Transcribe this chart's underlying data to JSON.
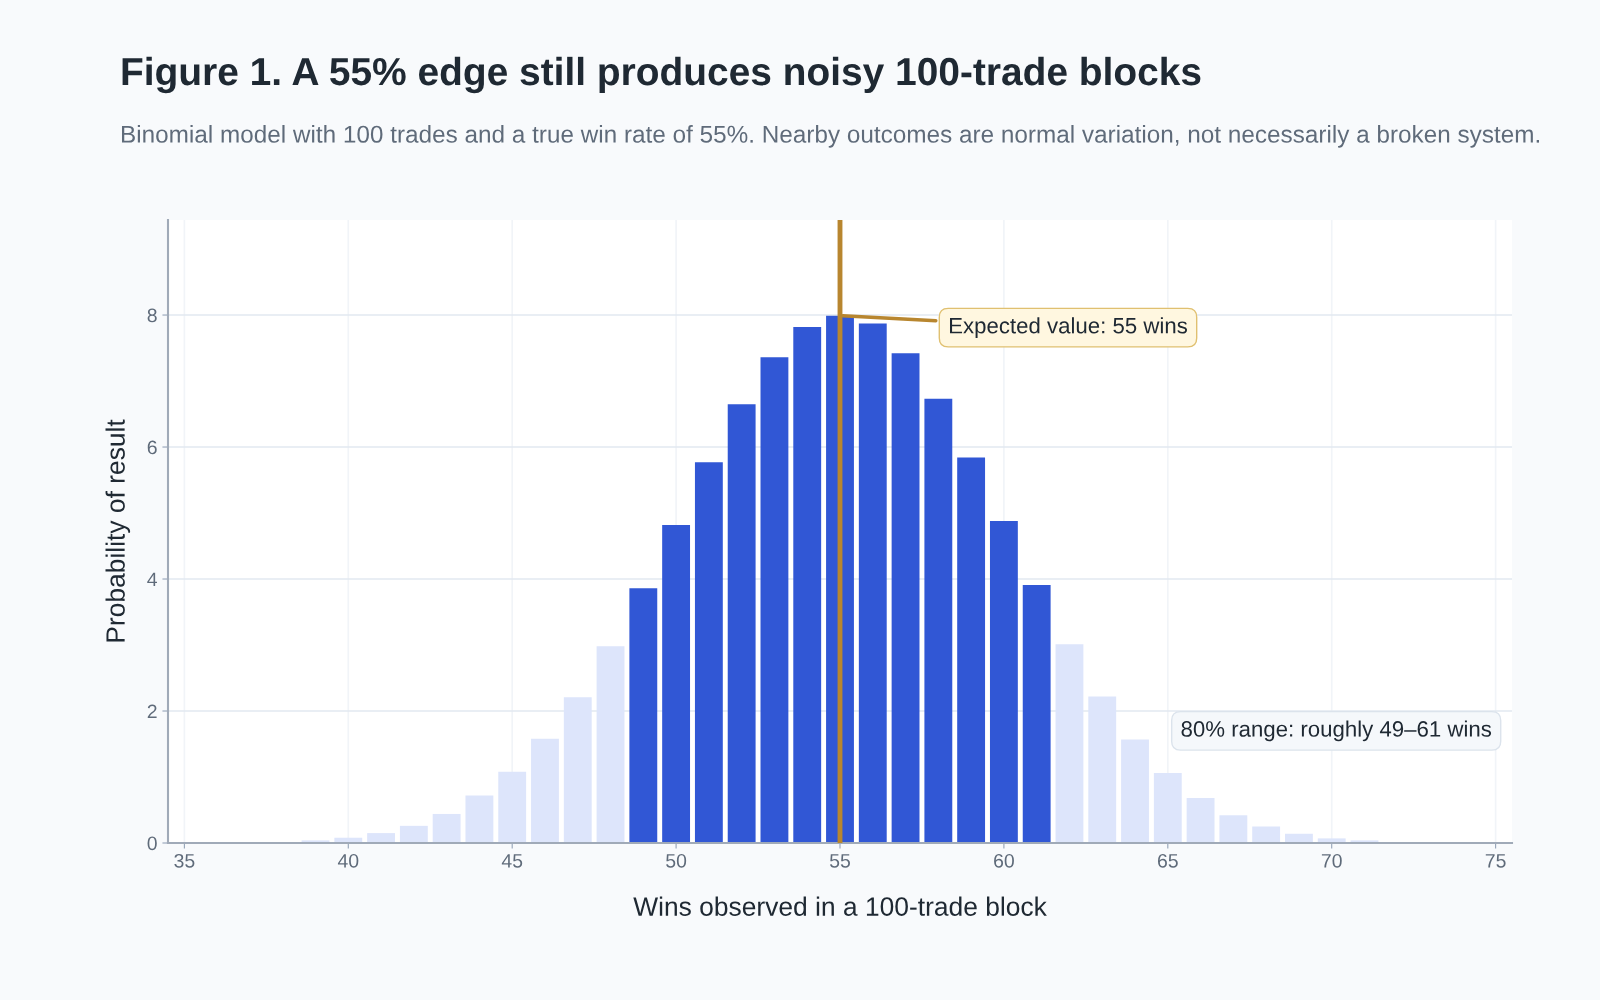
{
  "chart_data": {
    "type": "bar",
    "title": "Figure 1. A 55% edge still produces noisy 100-trade blocks",
    "subtitle": "Binomial model with 100 trades and a true win rate of 55%. Nearby outcomes are normal variation, not necessarily a broken system.",
    "xlabel": "Wins observed in a 100-trade block",
    "ylabel": "Probability of result",
    "x": [
      37,
      38,
      39,
      40,
      41,
      42,
      43,
      44,
      45,
      46,
      47,
      48,
      49,
      50,
      51,
      52,
      53,
      54,
      55,
      56,
      57,
      58,
      59,
      60,
      61,
      62,
      63,
      64,
      65,
      66,
      67,
      68,
      69,
      70,
      71,
      72,
      73
    ],
    "values": [
      0.01,
      null,
      0.04,
      0.08,
      0.15,
      0.26,
      0.44,
      0.72,
      1.08,
      1.58,
      2.21,
      2.98,
      3.86,
      4.82,
      5.77,
      6.65,
      7.36,
      7.82,
      7.99,
      7.87,
      7.42,
      6.73,
      5.84,
      4.88,
      3.91,
      3.01,
      2.22,
      1.57,
      1.06,
      0.68,
      0.42,
      0.25,
      0.14,
      0.07,
      0.04,
      null,
      0.01
    ],
    "colors": [
      "#dde5fb",
      "#dde5fb",
      "#dde5fb",
      "#dde5fb",
      "#dde5fb",
      "#dde5fb",
      "#dde5fb",
      "#dde5fb",
      "#dde5fb",
      "#dde5fb",
      "#dde5fb",
      "#dde5fb",
      "#3157d5",
      "#3157d5",
      "#3157d5",
      "#3157d5",
      "#3157d5",
      "#3157d5",
      "#3157d5",
      "#3157d5",
      "#3157d5",
      "#3157d5",
      "#3157d5",
      "#3157d5",
      "#3157d5",
      "#dde5fb",
      "#dde5fb",
      "#dde5fb",
      "#dde5fb",
      "#dde5fb",
      "#dde5fb",
      "#dde5fb",
      "#dde5fb",
      "#dde5fb",
      "#dde5fb",
      "#dde5fb",
      "#dde5fb"
    ],
    "xlim": [
      34.5,
      75.5
    ],
    "xticks": [
      35,
      40,
      45,
      50,
      55,
      60,
      65,
      70,
      75
    ],
    "ylim": [
      0,
      9.44
    ],
    "yticks": [
      0,
      2,
      4,
      6,
      8
    ],
    "grid": true,
    "ref_lines": [
      {
        "axis": "x",
        "value": 55,
        "label": "Expected value: 55 wins",
        "color": "#b8862f"
      }
    ],
    "annotations": [
      "80% range: roughly 49–61 wins"
    ]
  }
}
